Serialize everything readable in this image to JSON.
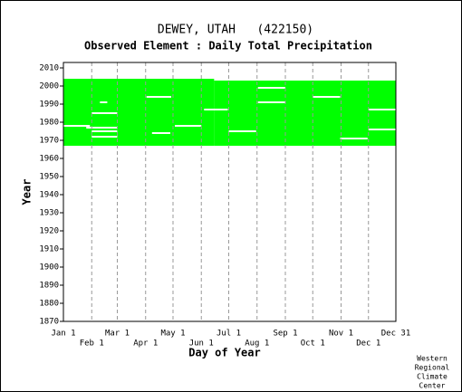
{
  "chart_data": {
    "type": "coverage",
    "title": "DEWEY, UTAH   (422150)",
    "subtitle": "Observed Element : Daily Total Precipitation",
    "x_label": "Day of Year",
    "y_label": "Year",
    "credit": [
      "Western",
      "Regional",
      "Climate",
      "Center"
    ],
    "color": "#00ff00",
    "gap_color": "#ffffff",
    "grid": true,
    "xlim": [
      1,
      365
    ],
    "ylim": [
      1870,
      2013
    ],
    "xticks": [
      {
        "value": 1,
        "label": "Jan 1"
      },
      {
        "value": 32,
        "label": "Feb 1"
      },
      {
        "value": 60,
        "label": "Mar 1"
      },
      {
        "value": 91,
        "label": "Apr 1"
      },
      {
        "value": 121,
        "label": "May 1"
      },
      {
        "value": 152,
        "label": "Jun 1"
      },
      {
        "value": 182,
        "label": "Jul 1"
      },
      {
        "value": 213,
        "label": "Aug 1"
      },
      {
        "value": 244,
        "label": "Sep 1"
      },
      {
        "value": 274,
        "label": "Oct 1"
      },
      {
        "value": 305,
        "label": "Nov 1"
      },
      {
        "value": 335,
        "label": "Dec 1"
      },
      {
        "value": 365,
        "label": "Dec 31"
      }
    ],
    "yticks": [
      1870,
      1880,
      1890,
      1900,
      1910,
      1920,
      1930,
      1940,
      1950,
      1960,
      1970,
      1980,
      1990,
      2000,
      2010
    ],
    "coverage": [
      {
        "start": 1,
        "end": 166,
        "from": 1967,
        "to": 2004
      },
      {
        "start": 166,
        "end": 365,
        "from": 1967,
        "to": 2003
      }
    ],
    "gaps": [
      {
        "year": 1978,
        "start": 1,
        "end": 30
      },
      {
        "year": 1991,
        "start": 41,
        "end": 49
      },
      {
        "year": 1985,
        "start": 32,
        "end": 60
      },
      {
        "year": 1977,
        "start": 26,
        "end": 60
      },
      {
        "year": 1975,
        "start": 32,
        "end": 60
      },
      {
        "year": 1972,
        "start": 32,
        "end": 60
      },
      {
        "year": 1994,
        "start": 92,
        "end": 119
      },
      {
        "year": 1974,
        "start": 98,
        "end": 118
      },
      {
        "year": 1978,
        "start": 123,
        "end": 152
      },
      {
        "year": 1987,
        "start": 155,
        "end": 181
      },
      {
        "year": 1975,
        "start": 182,
        "end": 212
      },
      {
        "year": 1999,
        "start": 214,
        "end": 244
      },
      {
        "year": 1991,
        "start": 214,
        "end": 244
      },
      {
        "year": 1994,
        "start": 274,
        "end": 304
      },
      {
        "year": 1971,
        "start": 304,
        "end": 334
      },
      {
        "year": 1987,
        "start": 335,
        "end": 365
      },
      {
        "year": 1976,
        "start": 335,
        "end": 365
      }
    ]
  }
}
